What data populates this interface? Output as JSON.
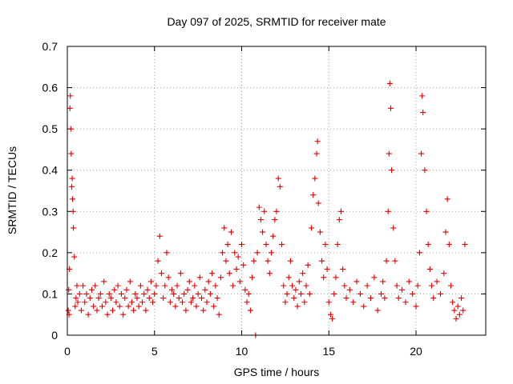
{
  "chart_data": {
    "type": "scatter",
    "title": "Day 097 of 2025, SRMTID for receiver mate",
    "xlabel": "GPS time / hours",
    "ylabel": "SRMTID / TECUs",
    "xlim": [
      0,
      24
    ],
    "ylim": [
      0,
      0.7
    ],
    "xticks": [
      0,
      5,
      10,
      15,
      20
    ],
    "xtick_labels": [
      "0",
      "5",
      "10",
      "15",
      "20"
    ],
    "yticks": [
      0,
      0.1,
      0.2,
      0.3,
      0.4,
      0.5,
      0.6,
      0.7
    ],
    "ytick_labels": [
      "0",
      "0.1",
      "0.2",
      "0.3",
      "0.4",
      "0.5",
      "0.6",
      "0.7"
    ],
    "grid": true,
    "series": [
      {
        "name": "SRMTID",
        "color": "#e00000",
        "marker": "plus",
        "points": [
          [
            0.05,
            0.06
          ],
          [
            0.08,
            0.11
          ],
          [
            0.1,
            0.05
          ],
          [
            0.12,
            0.16
          ],
          [
            0.15,
            0.55
          ],
          [
            0.17,
            0.58
          ],
          [
            0.2,
            0.5
          ],
          [
            0.22,
            0.44
          ],
          [
            0.25,
            0.36
          ],
          [
            0.28,
            0.38
          ],
          [
            0.3,
            0.33
          ],
          [
            0.33,
            0.3
          ],
          [
            0.35,
            0.26
          ],
          [
            0.4,
            0.19
          ],
          [
            0.45,
            0.07
          ],
          [
            0.5,
            0.09
          ],
          [
            0.55,
            0.12
          ],
          [
            0.6,
            0.08
          ],
          [
            0.7,
            0.1
          ],
          [
            0.8,
            0.06
          ],
          [
            0.9,
            0.12
          ],
          [
            1.0,
            0.08
          ],
          [
            1.1,
            0.1
          ],
          [
            1.2,
            0.05
          ],
          [
            1.3,
            0.09
          ],
          [
            1.4,
            0.11
          ],
          [
            1.5,
            0.07
          ],
          [
            1.6,
            0.12
          ],
          [
            1.7,
            0.06
          ],
          [
            1.8,
            0.09
          ],
          [
            1.9,
            0.1
          ],
          [
            2.0,
            0.07
          ],
          [
            2.1,
            0.13
          ],
          [
            2.2,
            0.08
          ],
          [
            2.3,
            0.05
          ],
          [
            2.4,
            0.1
          ],
          [
            2.5,
            0.09
          ],
          [
            2.6,
            0.06
          ],
          [
            2.7,
            0.11
          ],
          [
            2.8,
            0.08
          ],
          [
            2.9,
            0.12
          ],
          [
            3.0,
            0.07
          ],
          [
            3.1,
            0.1
          ],
          [
            3.2,
            0.05
          ],
          [
            3.3,
            0.09
          ],
          [
            3.4,
            0.11
          ],
          [
            3.5,
            0.07
          ],
          [
            3.6,
            0.13
          ],
          [
            3.7,
            0.08
          ],
          [
            3.8,
            0.06
          ],
          [
            3.9,
            0.1
          ],
          [
            4.0,
            0.09
          ],
          [
            4.1,
            0.07
          ],
          [
            4.2,
            0.12
          ],
          [
            4.3,
            0.08
          ],
          [
            4.4,
            0.1
          ],
          [
            4.5,
            0.06
          ],
          [
            4.6,
            0.11
          ],
          [
            4.7,
            0.09
          ],
          [
            4.8,
            0.13
          ],
          [
            4.9,
            0.08
          ],
          [
            5.0,
            0.1
          ],
          [
            5.1,
            0.12
          ],
          [
            5.2,
            0.18
          ],
          [
            5.3,
            0.24
          ],
          [
            5.4,
            0.15
          ],
          [
            5.5,
            0.09
          ],
          [
            5.6,
            0.12
          ],
          [
            5.7,
            0.2
          ],
          [
            5.8,
            0.14
          ],
          [
            5.9,
            0.08
          ],
          [
            6.0,
            0.11
          ],
          [
            6.1,
            0.1
          ],
          [
            6.2,
            0.07
          ],
          [
            6.3,
            0.12
          ],
          [
            6.4,
            0.09
          ],
          [
            6.5,
            0.15
          ],
          [
            6.6,
            0.08
          ],
          [
            6.7,
            0.1
          ],
          [
            6.8,
            0.06
          ],
          [
            6.9,
            0.11
          ],
          [
            7.0,
            0.13
          ],
          [
            7.1,
            0.08
          ],
          [
            7.2,
            0.09
          ],
          [
            7.3,
            0.12
          ],
          [
            7.4,
            0.07
          ],
          [
            7.5,
            0.1
          ],
          [
            7.6,
            0.14
          ],
          [
            7.7,
            0.09
          ],
          [
            7.8,
            0.06
          ],
          [
            7.9,
            0.11
          ],
          [
            8.0,
            0.08
          ],
          [
            8.1,
            0.13
          ],
          [
            8.2,
            0.1
          ],
          [
            8.3,
            0.15
          ],
          [
            8.4,
            0.07
          ],
          [
            8.5,
            0.12
          ],
          [
            8.6,
            0.09
          ],
          [
            8.7,
            0.05
          ],
          [
            8.8,
            0.14
          ],
          [
            8.9,
            0.2
          ],
          [
            9.0,
            0.26
          ],
          [
            9.1,
            0.18
          ],
          [
            9.2,
            0.22
          ],
          [
            9.3,
            0.15
          ],
          [
            9.4,
            0.25
          ],
          [
            9.5,
            0.12
          ],
          [
            9.6,
            0.2
          ],
          [
            9.7,
            0.16
          ],
          [
            9.8,
            0.19
          ],
          [
            9.9,
            0.13
          ],
          [
            10.0,
            0.22
          ],
          [
            10.1,
            0.17
          ],
          [
            10.2,
            0.11
          ],
          [
            10.3,
            0.08
          ],
          [
            10.4,
            0.1
          ],
          [
            10.5,
            0.06
          ],
          [
            10.6,
            0.14
          ],
          [
            10.7,
            0.18
          ],
          [
            10.8,
            0.0
          ],
          [
            10.9,
            0.2
          ],
          [
            11.0,
            0.31
          ],
          [
            11.1,
            0.28
          ],
          [
            11.2,
            0.25
          ],
          [
            11.3,
            0.3
          ],
          [
            11.4,
            0.22
          ],
          [
            11.5,
            0.18
          ],
          [
            11.6,
            0.15
          ],
          [
            11.7,
            0.2
          ],
          [
            11.8,
            0.24
          ],
          [
            11.9,
            0.28
          ],
          [
            12.0,
            0.3
          ],
          [
            12.1,
            0.38
          ],
          [
            12.2,
            0.36
          ],
          [
            12.3,
            0.22
          ],
          [
            12.4,
            0.12
          ],
          [
            12.5,
            0.08
          ],
          [
            12.6,
            0.1
          ],
          [
            12.7,
            0.14
          ],
          [
            12.8,
            0.18
          ],
          [
            12.9,
            0.12
          ],
          [
            13.0,
            0.09
          ],
          [
            13.1,
            0.11
          ],
          [
            13.2,
            0.07
          ],
          [
            13.3,
            0.13
          ],
          [
            13.4,
            0.1
          ],
          [
            13.5,
            0.15
          ],
          [
            13.6,
            0.08
          ],
          [
            13.7,
            0.12
          ],
          [
            13.8,
            0.17
          ],
          [
            13.9,
            0.1
          ],
          [
            14.0,
            0.26
          ],
          [
            14.1,
            0.34
          ],
          [
            14.2,
            0.38
          ],
          [
            14.3,
            0.44
          ],
          [
            14.35,
            0.47
          ],
          [
            14.4,
            0.32
          ],
          [
            14.5,
            0.25
          ],
          [
            14.6,
            0.18
          ],
          [
            14.7,
            0.14
          ],
          [
            14.8,
            0.22
          ],
          [
            14.9,
            0.16
          ],
          [
            15.0,
            0.08
          ],
          [
            15.1,
            0.05
          ],
          [
            15.2,
            0.04
          ],
          [
            15.3,
            0.1
          ],
          [
            15.4,
            0.14
          ],
          [
            15.5,
            0.22
          ],
          [
            15.6,
            0.28
          ],
          [
            15.7,
            0.3
          ],
          [
            15.8,
            0.16
          ],
          [
            15.9,
            0.12
          ],
          [
            16.0,
            0.09
          ],
          [
            16.2,
            0.11
          ],
          [
            16.4,
            0.08
          ],
          [
            16.6,
            0.13
          ],
          [
            16.8,
            0.1
          ],
          [
            17.0,
            0.07
          ],
          [
            17.2,
            0.12
          ],
          [
            17.4,
            0.09
          ],
          [
            17.6,
            0.14
          ],
          [
            17.8,
            0.06
          ],
          [
            18.0,
            0.1
          ],
          [
            18.1,
            0.13
          ],
          [
            18.2,
            0.09
          ],
          [
            18.3,
            0.18
          ],
          [
            18.4,
            0.3
          ],
          [
            18.45,
            0.44
          ],
          [
            18.5,
            0.61
          ],
          [
            18.55,
            0.55
          ],
          [
            18.6,
            0.4
          ],
          [
            18.7,
            0.26
          ],
          [
            18.8,
            0.18
          ],
          [
            18.9,
            0.12
          ],
          [
            19.0,
            0.09
          ],
          [
            19.2,
            0.11
          ],
          [
            19.4,
            0.08
          ],
          [
            19.6,
            0.13
          ],
          [
            19.8,
            0.1
          ],
          [
            20.0,
            0.07
          ],
          [
            20.1,
            0.12
          ],
          [
            20.2,
            0.2
          ],
          [
            20.3,
            0.44
          ],
          [
            20.35,
            0.58
          ],
          [
            20.4,
            0.54
          ],
          [
            20.5,
            0.4
          ],
          [
            20.6,
            0.3
          ],
          [
            20.7,
            0.22
          ],
          [
            20.8,
            0.16
          ],
          [
            20.9,
            0.12
          ],
          [
            21.0,
            0.09
          ],
          [
            21.2,
            0.13
          ],
          [
            21.4,
            0.1
          ],
          [
            21.6,
            0.15
          ],
          [
            21.7,
            0.25
          ],
          [
            21.8,
            0.33
          ],
          [
            21.9,
            0.22
          ],
          [
            22.0,
            0.12
          ],
          [
            22.1,
            0.08
          ],
          [
            22.2,
            0.06
          ],
          [
            22.3,
            0.04
          ],
          [
            22.4,
            0.07
          ],
          [
            22.5,
            0.05
          ],
          [
            22.6,
            0.09
          ],
          [
            22.7,
            0.06
          ],
          [
            22.8,
            0.22
          ]
        ]
      }
    ]
  }
}
